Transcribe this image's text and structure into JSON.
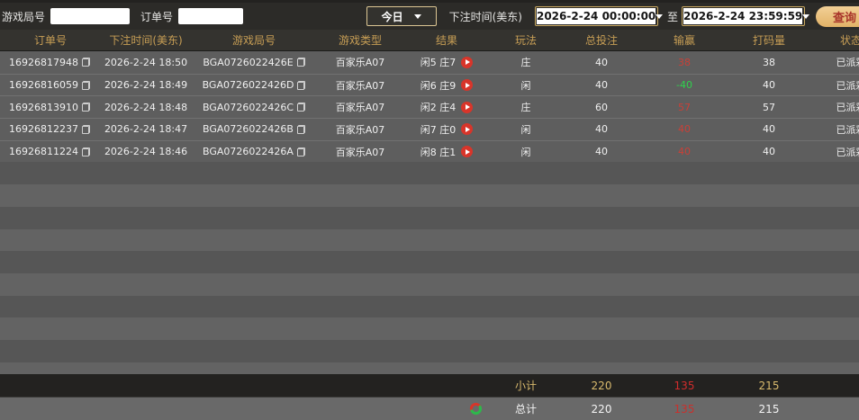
{
  "topbar": {
    "game_round_label": "游戏局号",
    "order_label": "订单号",
    "period_selected": "今日",
    "bet_time_label": "下注时间(美东)",
    "date_from": "2026-2-24 00:00:00",
    "to_label": "至",
    "date_to": "2026-2-24 23:59:59",
    "query_button_label": "查询"
  },
  "table": {
    "headers": [
      "订单号",
      "下注时间(美东)",
      "游戏局号",
      "游戏类型",
      "结果",
      "玩法",
      "总投注",
      "输赢",
      "打码量",
      "状态"
    ],
    "rows": [
      {
        "order_id": "16926817948",
        "bet_time": "2026-2-24 18:50",
        "round_id": "BGA0726022426E",
        "game_type": "百家乐A07",
        "result": "闲5 庄7",
        "play": "庄",
        "total_bet": "40",
        "win_loss": "38",
        "win_loss_color": "red",
        "turnover": "38",
        "status": "已派彩"
      },
      {
        "order_id": "16926816059",
        "bet_time": "2026-2-24 18:49",
        "round_id": "BGA0726022426D",
        "game_type": "百家乐A07",
        "result": "闲6 庄9",
        "play": "闲",
        "total_bet": "40",
        "win_loss": "-40",
        "win_loss_color": "green",
        "turnover": "40",
        "status": "已派彩"
      },
      {
        "order_id": "16926813910",
        "bet_time": "2026-2-24 18:48",
        "round_id": "BGA0726022426C",
        "game_type": "百家乐A07",
        "result": "闲2 庄4",
        "play": "庄",
        "total_bet": "60",
        "win_loss": "57",
        "win_loss_color": "red",
        "turnover": "57",
        "status": "已派彩"
      },
      {
        "order_id": "16926812237",
        "bet_time": "2026-2-24 18:47",
        "round_id": "BGA0726022426B",
        "game_type": "百家乐A07",
        "result": "闲7 庄0",
        "play": "闲",
        "total_bet": "40",
        "win_loss": "40",
        "win_loss_color": "red",
        "turnover": "40",
        "status": "已派彩"
      },
      {
        "order_id": "16926811224",
        "bet_time": "2026-2-24 18:46",
        "round_id": "BGA0726022426A",
        "game_type": "百家乐A07",
        "result": "闲8 庄1",
        "play": "闲",
        "total_bet": "40",
        "win_loss": "40",
        "win_loss_color": "red",
        "turnover": "40",
        "status": "已派彩"
      }
    ],
    "empty_row_count": 10,
    "subtotal": {
      "label": "小计",
      "total_bet": "220",
      "win_loss": "135",
      "turnover": "215"
    },
    "grand_total": {
      "label": "总计",
      "total_bet": "220",
      "win_loss": "135",
      "turnover": "215"
    }
  },
  "icons": {
    "copy": "copy-icon",
    "play": "play-replay-icon",
    "sync": "red-green-sync-icon",
    "dropdown": "chevron-down-icon"
  },
  "colors": {
    "topbar_bg": "#2c2b28",
    "header_bg": "#34332f",
    "header_text_gold": "#c79e55",
    "row_bg": "#5e5e5e",
    "win_red": "#c84038",
    "loss_green": "#2fd34c",
    "subtotal_bg": "#232220",
    "subtotal_gold": "#d9ba6d",
    "query_button_bg": "#e9c27c",
    "query_button_text": "#a8342a",
    "gold_border": "#c9a961"
  }
}
